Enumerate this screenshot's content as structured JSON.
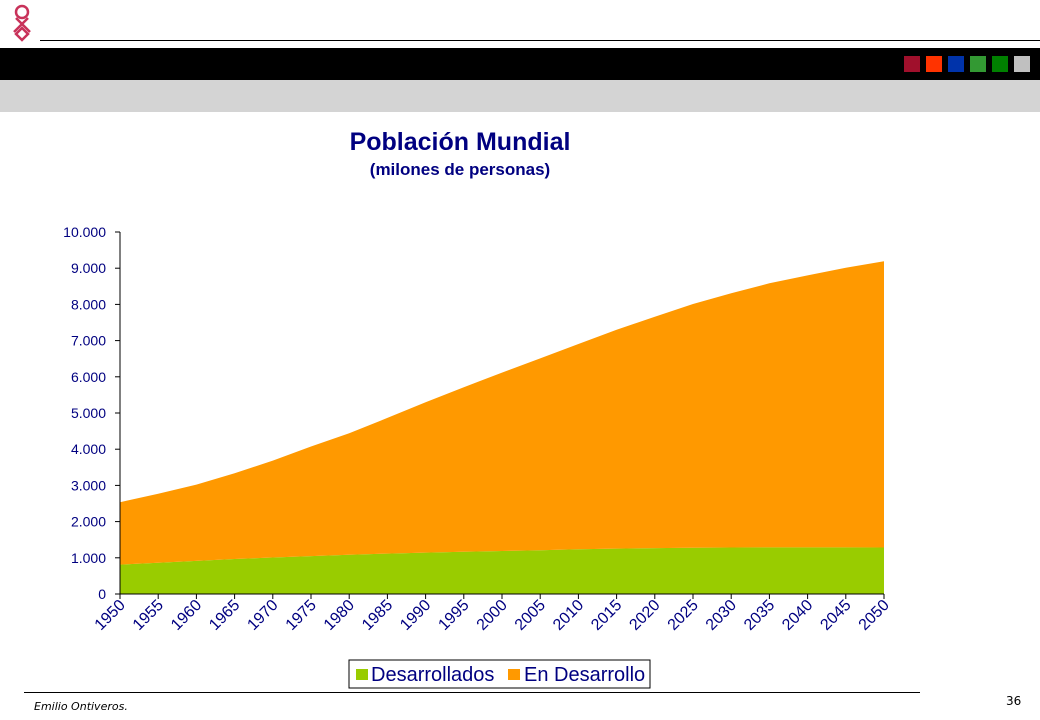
{
  "header": {
    "logo_icon": "ribbon-logo-icon",
    "squares": [
      "#a0102c",
      "#ff3300",
      "#0033aa",
      "#339933",
      "#008000",
      "#c0c0c0"
    ]
  },
  "chart_data": {
    "type": "area",
    "stacked": true,
    "title": "Población Mundial",
    "subtitle": "(milones de personas)",
    "x": [
      "1950",
      "1955",
      "1960",
      "1965",
      "1970",
      "1975",
      "1980",
      "1985",
      "1990",
      "1995",
      "2000",
      "2005",
      "2010",
      "2015",
      "2020",
      "2025",
      "2030",
      "2035",
      "2040",
      "2045",
      "2050"
    ],
    "series": [
      {
        "name": "Desarrollados",
        "color": "#99cc00",
        "values": [
          813,
          864,
          915,
          966,
          1008,
          1048,
          1083,
          1115,
          1144,
          1169,
          1188,
          1209,
          1234,
          1253,
          1267,
          1278,
          1284,
          1287,
          1288,
          1287,
          1284
        ]
      },
      {
        "name": "En Desarrollo",
        "color": "#ff9900",
        "values": [
          1722,
          1908,
          2106,
          2367,
          2676,
          3026,
          3358,
          3750,
          4151,
          4543,
          4927,
          5300,
          5671,
          6047,
          6393,
          6733,
          7022,
          7297,
          7512,
          7728,
          7907
        ]
      }
    ],
    "ylim": [
      0,
      10000
    ],
    "yticks": [
      0,
      1000,
      2000,
      3000,
      4000,
      5000,
      6000,
      7000,
      8000,
      9000,
      10000
    ],
    "ytick_labels": [
      "0",
      "1.000",
      "2.000",
      "3.000",
      "4.000",
      "5.000",
      "6.000",
      "7.000",
      "8.000",
      "9.000",
      "10.000"
    ],
    "grid": false,
    "legend_position": "bottom"
  },
  "footer": {
    "author": "Emilio Ontiveros.",
    "page": "36"
  }
}
